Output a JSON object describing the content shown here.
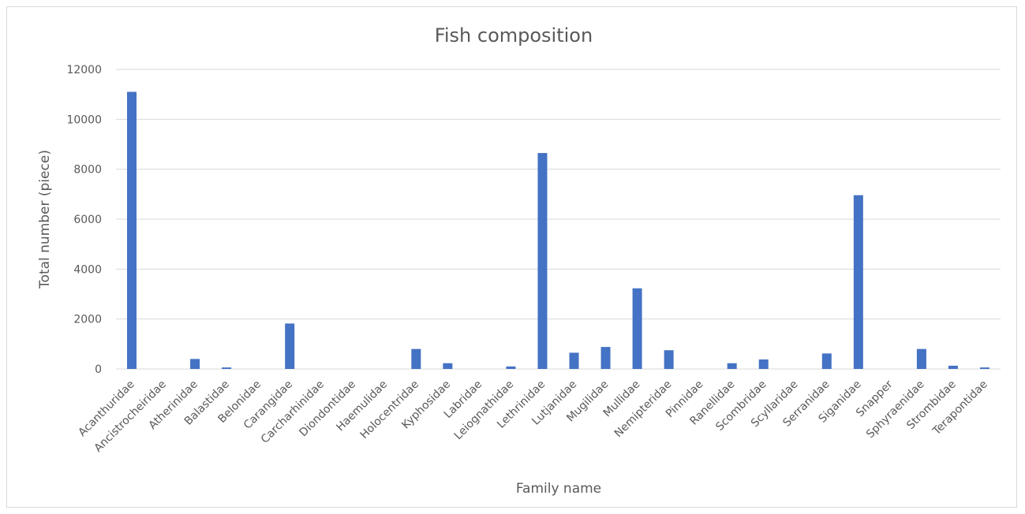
{
  "chart_data": {
    "type": "bar",
    "title": "Fish composition",
    "xlabel": "Family name",
    "ylabel": "Total number (piece)",
    "ylim": [
      0,
      12000
    ],
    "yticks": [
      0,
      2000,
      4000,
      6000,
      8000,
      10000,
      12000
    ],
    "grid": true,
    "legend": "none",
    "bar_color": "#4472c4",
    "categories": [
      "Acanthuridae",
      "Ancistrocheiridae",
      "Atherinidae",
      "Balastidae",
      "Belonidae",
      "Carangidae",
      "Carcharhinidae",
      "Diondontidae",
      "Haemulidae",
      "Holocentridae",
      "Kyphosidae",
      "Labridae",
      "Leiognathidae",
      "Lethrinidae",
      "Lutjanidae",
      "Mugilidae",
      "Mullidae",
      "Nemipteridae",
      "Pinnidae",
      "Ranellidae",
      "Scombridae",
      "Scyllaridae",
      "Serranidae",
      "Siganidae",
      "Snapper",
      "Sphyraenidae",
      "Strombidae",
      "Terapontidae"
    ],
    "values": [
      11100,
      0,
      400,
      60,
      0,
      1820,
      0,
      0,
      0,
      800,
      230,
      0,
      100,
      8650,
      650,
      880,
      3230,
      750,
      0,
      230,
      380,
      0,
      620,
      6960,
      0,
      800,
      130,
      60
    ]
  }
}
